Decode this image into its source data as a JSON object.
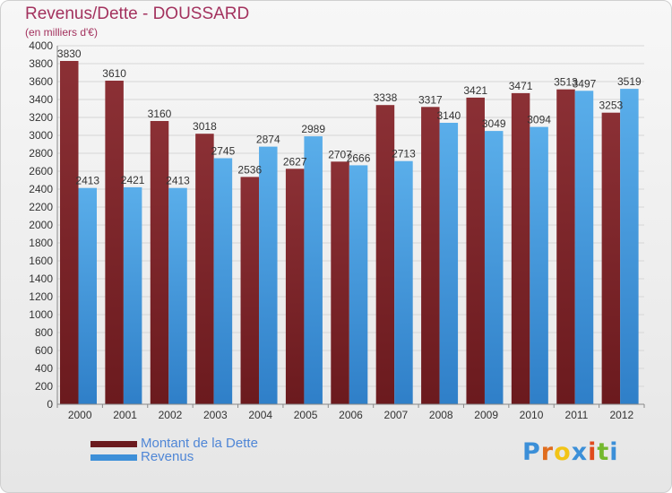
{
  "header": {
    "title": "Revenus/Dette - DOUSSARD",
    "subtitle": "(en milliers d'€)"
  },
  "colors": {
    "dette": "#6b1a1e",
    "revenus": "#3d8fd8",
    "title": "#a3325e",
    "legend_text": "#4f86d6"
  },
  "logo": {
    "text": "Proxiti",
    "letter_colors": [
      "#3b8fd8",
      "#e06d1e",
      "#f2c416",
      "#3b8fd8",
      "#e04a1e",
      "#74b82e",
      "#3b8fd8"
    ]
  },
  "chart_data": {
    "type": "bar",
    "title": "Revenus/Dette - DOUSSARD",
    "subtitle": "(en milliers d'€)",
    "categories": [
      "2000",
      "2001",
      "2002",
      "2003",
      "2004",
      "2005",
      "2006",
      "2007",
      "2008",
      "2009",
      "2010",
      "2011",
      "2012"
    ],
    "series": [
      {
        "name": "Montant de la Dette",
        "values": [
          3830,
          3610,
          3160,
          3018,
          2536,
          2627,
          2707,
          3338,
          3317,
          3421,
          3471,
          3513,
          3253
        ]
      },
      {
        "name": "Revenus",
        "values": [
          2413,
          2421,
          2413,
          2745,
          2874,
          2989,
          2666,
          2713,
          3140,
          3049,
          3094,
          3497,
          3519
        ]
      }
    ],
    "ylim": [
      0,
      4000
    ],
    "yticks": [
      0,
      200,
      400,
      600,
      800,
      1000,
      1200,
      1400,
      1600,
      1800,
      2000,
      2200,
      2400,
      2600,
      2800,
      3000,
      3200,
      3400,
      3600,
      3800,
      4000
    ],
    "grid": true,
    "legend": "bottom-left"
  }
}
